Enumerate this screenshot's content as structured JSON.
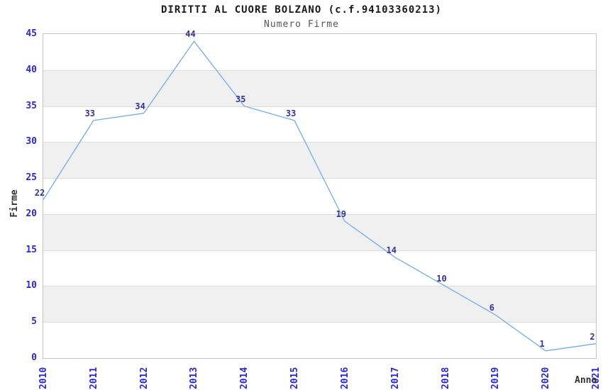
{
  "chart_data": {
    "type": "line",
    "title": "DIRITTI AL CUORE BOLZANO (c.f.94103360213)",
    "subtitle": "Numero Firme",
    "xlabel": "Anno",
    "ylabel": "Firme",
    "categories": [
      "2010",
      "2011",
      "2012",
      "2013",
      "2014",
      "2015",
      "2016",
      "2017",
      "2018",
      "2019",
      "2020",
      "2021"
    ],
    "series": [
      {
        "name": "Numero Firme",
        "values": [
          22,
          33,
          34,
          44,
          35,
          33,
          19,
          14,
          10,
          6,
          1,
          2
        ]
      }
    ],
    "ylim": [
      0,
      45
    ],
    "yticks": [
      0,
      5,
      10,
      15,
      20,
      25,
      30,
      35,
      40,
      45
    ],
    "point_labels_visible": true,
    "legend": "none",
    "grid": "horizontal",
    "band_ranges": [
      [
        5,
        10
      ],
      [
        15,
        20
      ],
      [
        25,
        30
      ],
      [
        35,
        40
      ]
    ],
    "colors": {
      "line": "#76ace2",
      "point_label": "#333399",
      "tick_label": "#2929cc",
      "axis_title": "#333333",
      "band": "#f0f0f0",
      "gridline": "#dddddd",
      "plot_border": "#c3c3c3",
      "background": "#ffffff",
      "title": "#1a1a1a",
      "subtitle": "#555555"
    }
  }
}
